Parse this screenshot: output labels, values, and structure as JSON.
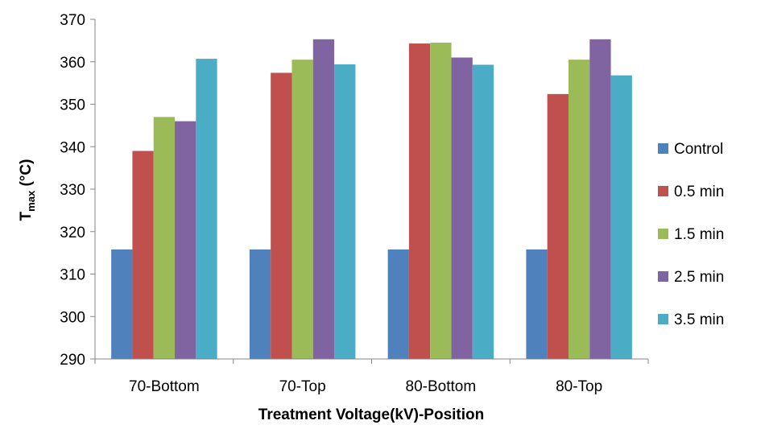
{
  "chart_data": {
    "type": "bar",
    "title": "",
    "xlabel": "Treatment Voltage(kV)-Position",
    "ylabel_main": "T",
    "ylabel_sub": "max",
    "ylabel_unit": " (°C)",
    "ylim": [
      290,
      370
    ],
    "yticks": [
      290,
      300,
      310,
      320,
      330,
      340,
      350,
      360,
      370
    ],
    "grid": false,
    "legend_position": "right",
    "categories": [
      "70-Bottom",
      "70-Top",
      "80-Bottom",
      "80-Top"
    ],
    "series": [
      {
        "name": "Control",
        "color": "#4F81BD",
        "values": [
          315.8,
          315.8,
          315.8,
          315.8
        ]
      },
      {
        "name": "0.5 min",
        "color": "#C0504D",
        "values": [
          339.0,
          357.4,
          364.3,
          352.4
        ]
      },
      {
        "name": "1.5 min",
        "color": "#9BBB59",
        "values": [
          347.0,
          360.5,
          364.5,
          360.5
        ]
      },
      {
        "name": "2.5 min",
        "color": "#8064A2",
        "values": [
          346.0,
          365.3,
          361.0,
          365.3
        ]
      },
      {
        "name": "3.5 min",
        "color": "#4BACC6",
        "values": [
          360.7,
          359.4,
          359.3,
          356.8
        ]
      }
    ]
  }
}
